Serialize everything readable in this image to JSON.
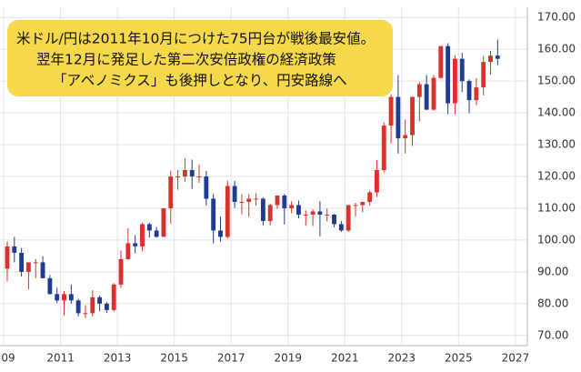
{
  "chart_data": {
    "type": "candlestick",
    "annotation": [
      "米ドル/円は2011年10月につけた75円台が戦後最安値。",
      "翌年12月に発足した第二次安倍政権の経済政策",
      "「アベノミクス」も後押しとなり、円安路線へ"
    ],
    "x": [
      2009.125,
      2009.375,
      2009.625,
      2009.875,
      2010.125,
      2010.375,
      2010.625,
      2010.875,
      2011.125,
      2011.375,
      2011.625,
      2011.875,
      2012.125,
      2012.375,
      2012.625,
      2012.875,
      2013.125,
      2013.375,
      2013.625,
      2013.875,
      2014.125,
      2014.375,
      2014.625,
      2014.875,
      2015.125,
      2015.375,
      2015.625,
      2015.875,
      2016.125,
      2016.375,
      2016.625,
      2016.875,
      2017.125,
      2017.375,
      2017.625,
      2017.875,
      2018.125,
      2018.375,
      2018.625,
      2018.875,
      2019.125,
      2019.375,
      2019.625,
      2019.875,
      2020.125,
      2020.375,
      2020.625,
      2020.875,
      2021.125,
      2021.375,
      2021.625,
      2021.875,
      2022.125,
      2022.375,
      2022.625,
      2022.875,
      2023.125,
      2023.375,
      2023.625,
      2023.875,
      2024.125,
      2024.375,
      2024.625,
      2024.875,
      2025.125,
      2025.375,
      2025.625,
      2025.875,
      2026.125,
      2026.375
    ],
    "open": [
      91,
      98,
      96,
      90,
      93,
      93,
      88,
      83,
      81,
      83,
      81,
      77,
      77,
      82,
      80,
      78,
      86,
      94,
      99,
      98,
      105,
      103,
      101,
      110,
      120,
      120,
      122,
      120,
      120,
      113,
      103,
      101,
      117,
      112,
      112,
      113,
      113,
      106,
      111,
      114,
      110,
      111,
      108,
      108,
      109,
      108,
      108,
      105,
      103,
      111,
      111,
      112,
      115,
      122,
      136,
      145,
      132,
      133,
      145,
      149,
      141,
      151,
      161,
      143,
      157,
      150,
      144,
      148,
      156,
      158
    ],
    "high": [
      99.5,
      101,
      97.5,
      93,
      94,
      94.9,
      89,
      85,
      84,
      86,
      81.5,
      79.5,
      84.2,
      82.5,
      80.5,
      86.5,
      96.7,
      103.7,
      101.5,
      105.4,
      105.4,
      104.1,
      110,
      121.8,
      122,
      125.8,
      125.3,
      123.7,
      121.7,
      114.5,
      107.5,
      118.7,
      118.6,
      114.4,
      114.5,
      114.7,
      113.4,
      111.4,
      114,
      114.5,
      112.2,
      112.4,
      109.3,
      109.7,
      112.2,
      109.9,
      108.2,
      106,
      110.9,
      111.7,
      112.1,
      115.5,
      125.1,
      137,
      145.9,
      151.9,
      137.9,
      145.1,
      149.7,
      151.9,
      151.9,
      161,
      161.9,
      158.1,
      158.9,
      150.5,
      150.9,
      157.9,
      159.5,
      163
    ],
    "low": [
      87,
      93,
      88.5,
      84.5,
      88,
      88,
      82.9,
      80.2,
      76.3,
      80,
      76,
      75.5,
      76,
      77.6,
      77.1,
      77.5,
      85,
      93.8,
      95.8,
      96.6,
      100.8,
      100.8,
      101,
      105.2,
      115.8,
      118.3,
      116.1,
      118,
      110.9,
      99,
      99.5,
      100.5,
      110.1,
      108.1,
      107.3,
      110.8,
      104.6,
      104.6,
      109.8,
      104.9,
      108.4,
      106.8,
      104.5,
      104.4,
      101.2,
      105.9,
      104,
      102.6,
      102.6,
      107.5,
      108.7,
      110.8,
      113.5,
      121.3,
      130.4,
      127.2,
      127.2,
      129.6,
      137.3,
      140.9,
      140.8,
      150.8,
      139.6,
      139.6,
      146.5,
      139.9,
      142.5,
      145.5,
      152,
      155
    ],
    "close": [
      98,
      96,
      90,
      93,
      93,
      88,
      83,
      81,
      83,
      81,
      77,
      77,
      82,
      80,
      78,
      86,
      94,
      99,
      98,
      105,
      103,
      101,
      110,
      120,
      120,
      122,
      120,
      120,
      113,
      103,
      101,
      117,
      112,
      112,
      113,
      113,
      106,
      111,
      114,
      110,
      111,
      108,
      108,
      109,
      108,
      108,
      105,
      103,
      111,
      111,
      112,
      115,
      122,
      136,
      145,
      132,
      133,
      145,
      149,
      141,
      151,
      161,
      143,
      157,
      150,
      144,
      148,
      156,
      158,
      157
    ],
    "up_color": "#d8322c",
    "down_color": "#1f3c94",
    "xlim": [
      2008.87,
      2027.42
    ],
    "xticks": [
      {
        "value": 2009,
        "label": "09"
      },
      2011,
      2013,
      2015,
      2017,
      2019,
      2021,
      2023,
      2025,
      2027
    ],
    "ylim": [
      66.8,
      173.2
    ],
    "yticks": [
      {
        "value": 70,
        "label": "70.00"
      },
      {
        "value": 80,
        "label": "80.00"
      },
      {
        "value": 90,
        "label": "90.00"
      },
      {
        "value": 100,
        "label": "100.00"
      },
      {
        "value": 110,
        "label": "110.00"
      },
      {
        "value": 120,
        "label": "120.00"
      },
      {
        "value": 130,
        "label": "130.00"
      },
      {
        "value": 140,
        "label": "140.00"
      },
      {
        "value": 150,
        "label": "150.00"
      },
      {
        "value": 160,
        "label": "160.00"
      },
      {
        "value": 170,
        "label": "170.00"
      }
    ],
    "grid": true
  }
}
